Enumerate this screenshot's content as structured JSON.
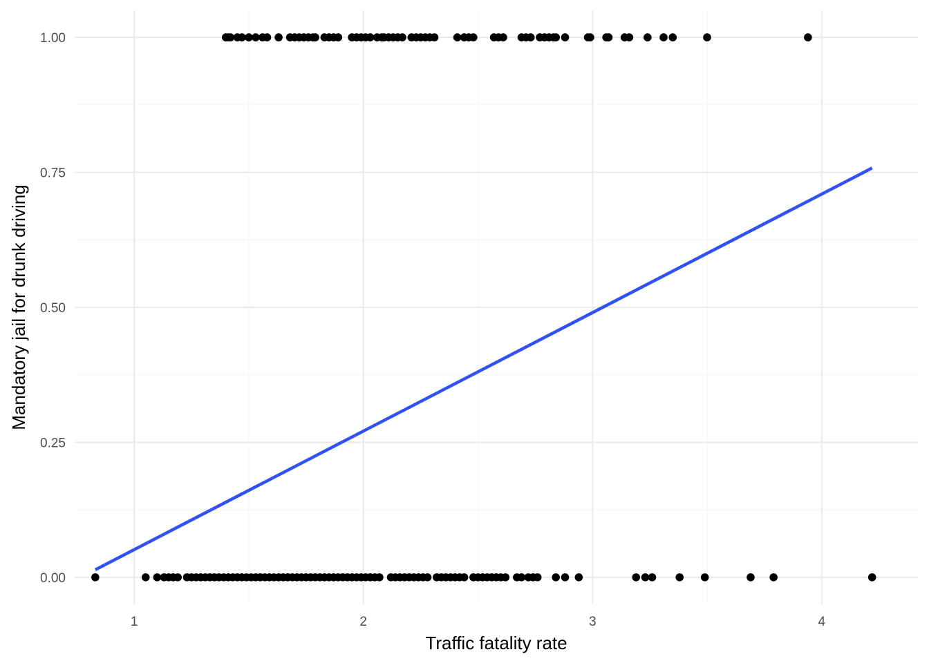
{
  "chart_data": {
    "type": "scatter",
    "title": "",
    "xlabel": "Traffic fatality rate",
    "ylabel": "Mandatory jail for drunk driving",
    "xlim": [
      0.74,
      4.42
    ],
    "ylim": [
      -0.05,
      1.05
    ],
    "x_ticks": [
      1,
      2,
      3,
      4
    ],
    "x_tick_labels": [
      "1",
      "2",
      "3",
      "4"
    ],
    "y_ticks": [
      0,
      0.25,
      0.5,
      0.75,
      1
    ],
    "y_tick_labels": [
      "0.00",
      "0.25",
      "0.50",
      "0.75",
      "1.00"
    ],
    "grid": true,
    "legend": "none",
    "colors": {
      "points": "#000000",
      "fit_line": "#3050f8",
      "grid_major": "#ebebeb",
      "grid_minor": "#f5f5f5"
    },
    "points_y1": [
      1.4,
      1.41,
      1.42,
      1.45,
      1.47,
      1.5,
      1.53,
      1.56,
      1.58,
      1.63,
      1.68,
      1.7,
      1.72,
      1.74,
      1.76,
      1.78,
      1.79,
      1.83,
      1.85,
      1.87,
      1.89,
      1.95,
      1.97,
      1.99,
      2.01,
      2.03,
      2.06,
      2.08,
      2.09,
      2.11,
      2.13,
      2.15,
      2.17,
      2.21,
      2.23,
      2.25,
      2.27,
      2.29,
      2.31,
      2.41,
      2.44,
      2.46,
      2.48,
      2.57,
      2.59,
      2.61,
      2.69,
      2.71,
      2.73,
      2.77,
      2.79,
      2.81,
      2.83,
      2.84,
      2.88,
      2.98,
      2.99,
      3.06,
      3.07,
      3.14,
      3.16,
      3.24,
      3.31,
      3.35,
      3.5,
      3.94
    ],
    "points_y0": [
      0.83,
      1.05,
      1.1,
      1.13,
      1.15,
      1.17,
      1.19,
      1.23,
      1.25,
      1.27,
      1.29,
      1.31,
      1.33,
      1.35,
      1.37,
      1.39,
      1.41,
      1.43,
      1.45,
      1.47,
      1.49,
      1.51,
      1.53,
      1.55,
      1.57,
      1.59,
      1.61,
      1.63,
      1.65,
      1.67,
      1.69,
      1.71,
      1.73,
      1.75,
      1.77,
      1.79,
      1.81,
      1.83,
      1.85,
      1.87,
      1.89,
      1.91,
      1.93,
      1.95,
      1.97,
      1.99,
      2.01,
      2.03,
      2.05,
      2.07,
      2.12,
      2.14,
      2.16,
      2.18,
      2.2,
      2.22,
      2.24,
      2.26,
      2.28,
      2.32,
      2.34,
      2.36,
      2.38,
      2.4,
      2.42,
      2.44,
      2.48,
      2.5,
      2.52,
      2.54,
      2.56,
      2.58,
      2.6,
      2.62,
      2.67,
      2.69,
      2.72,
      2.74,
      2.76,
      2.84,
      2.88,
      2.94,
      3.19,
      3.23,
      3.26,
      3.38,
      3.49,
      3.69,
      3.79,
      4.22
    ],
    "fit_line": {
      "x": [
        0.83,
        4.22
      ],
      "y": [
        0.014,
        0.758
      ]
    }
  }
}
